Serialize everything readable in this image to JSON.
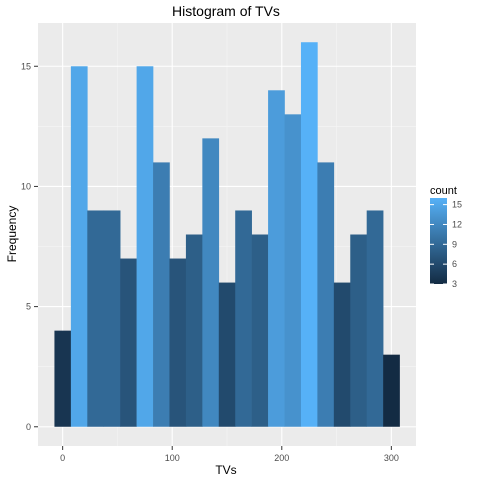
{
  "chart_data": {
    "type": "bar",
    "title": "Histogram of TVs",
    "xlabel": "TVs",
    "ylabel": "Frequency",
    "bin_width": 15,
    "bin_centers": [
      0,
      15,
      30,
      45,
      60,
      75,
      90,
      105,
      120,
      135,
      150,
      165,
      180,
      195,
      210,
      225,
      240,
      255,
      270,
      285,
      300
    ],
    "values": [
      4,
      15,
      9,
      9,
      7,
      15,
      11,
      7,
      8,
      12,
      6,
      9,
      8,
      14,
      13,
      16,
      11,
      6,
      8,
      9,
      3
    ],
    "xlim": [
      -22.5,
      322.5
    ],
    "ylim": [
      -0.8,
      16.8
    ],
    "x_ticks": [
      0,
      100,
      200,
      300
    ],
    "y_ticks": [
      0,
      5,
      10,
      15
    ],
    "grid": true,
    "legend": {
      "title": "count",
      "placement": "right",
      "breaks": [
        15,
        12,
        9,
        6,
        3
      ],
      "range": [
        3,
        16
      ]
    },
    "colors": {
      "low": "#132B43",
      "high": "#56B1F7",
      "panel": "#EBEBEB",
      "grid_major": "#FFFFFF"
    }
  }
}
